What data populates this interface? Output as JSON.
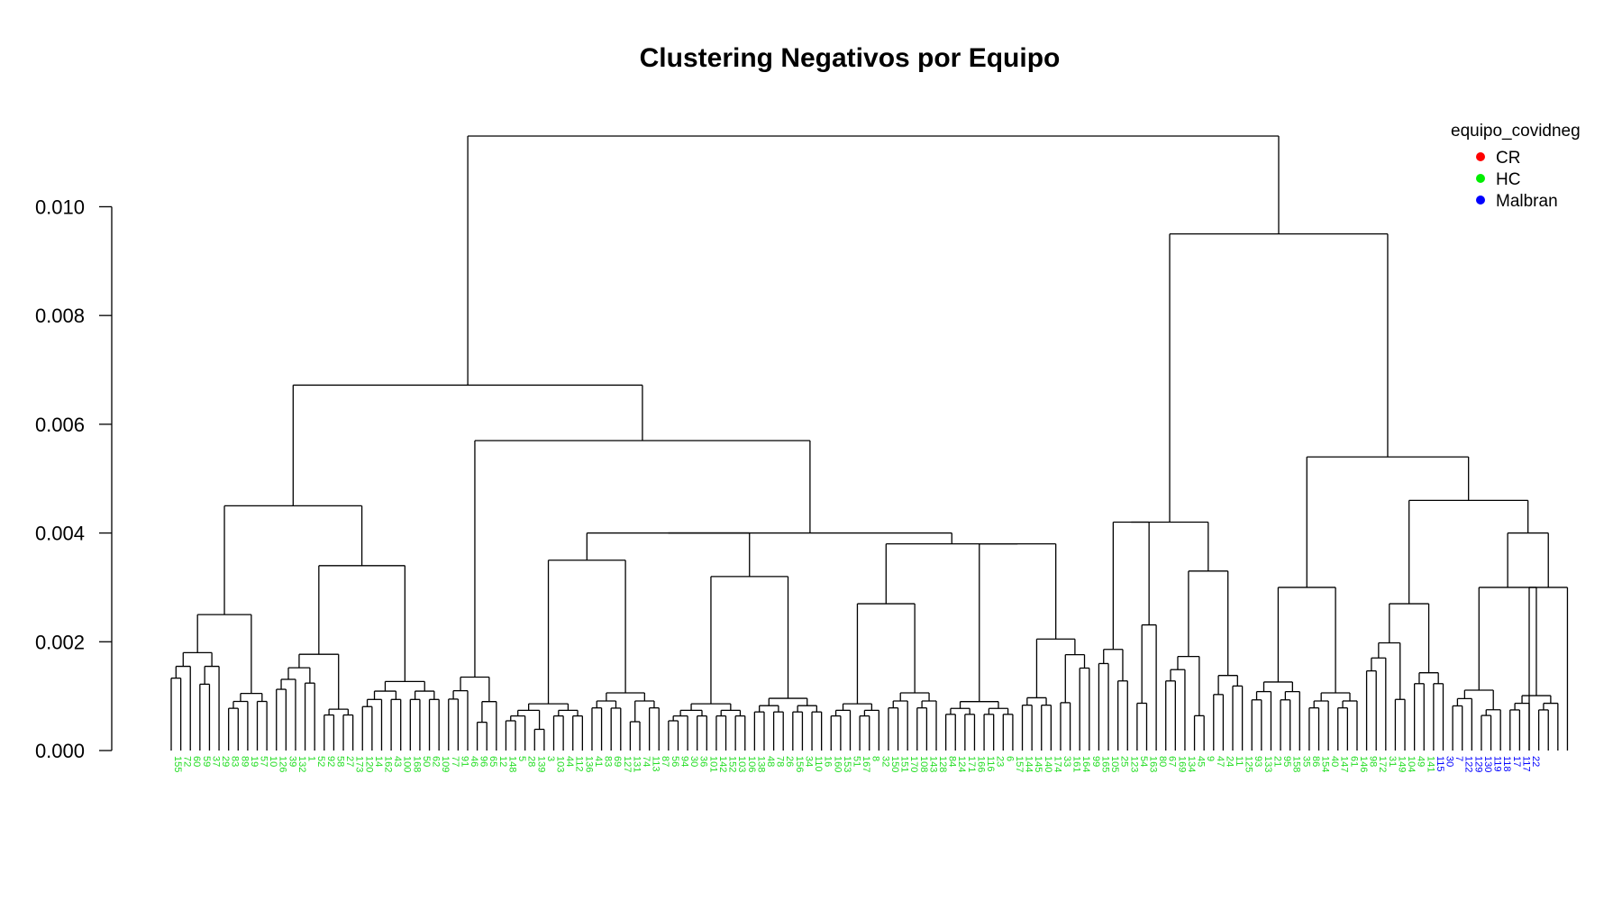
{
  "chart_data": {
    "type": "dendrogram",
    "title": "Clustering Negativos por Equipo",
    "ylim": [
      0,
      0.0113
    ],
    "y_ticks": [
      "0.000",
      "0.002",
      "0.004",
      "0.006",
      "0.008",
      "0.010"
    ],
    "legend": {
      "title": "equipo_covidneg",
      "position": "top-right",
      "entries": [
        {
          "label": "CR",
          "color": "#ff0000"
        },
        {
          "label": "HC",
          "color": "#00ee00"
        },
        {
          "label": "Malbran",
          "color": "#0000ff"
        }
      ]
    },
    "leaf_colors": {
      "HC": "#22dd22",
      "Malbran": "#0000ff"
    },
    "leaves": [
      {
        "label": "155",
        "group": "HC"
      },
      {
        "label": "72",
        "group": "HC"
      },
      {
        "label": "60",
        "group": "HC"
      },
      {
        "label": "59",
        "group": "HC"
      },
      {
        "label": "37",
        "group": "HC"
      },
      {
        "label": "29",
        "group": "HC"
      },
      {
        "label": "83",
        "group": "HC"
      },
      {
        "label": "89",
        "group": "HC"
      },
      {
        "label": "19",
        "group": "HC"
      },
      {
        "label": "57",
        "group": "HC"
      },
      {
        "label": "10",
        "group": "HC"
      },
      {
        "label": "126",
        "group": "HC"
      },
      {
        "label": "39",
        "group": "HC"
      },
      {
        "label": "132",
        "group": "HC"
      },
      {
        "label": "1",
        "group": "HC"
      },
      {
        "label": "52",
        "group": "HC"
      },
      {
        "label": "92",
        "group": "HC"
      },
      {
        "label": "58",
        "group": "HC"
      },
      {
        "label": "27",
        "group": "HC"
      },
      {
        "label": "173",
        "group": "HC"
      },
      {
        "label": "120",
        "group": "HC"
      },
      {
        "label": "14",
        "group": "HC"
      },
      {
        "label": "162",
        "group": "HC"
      },
      {
        "label": "43",
        "group": "HC"
      },
      {
        "label": "100",
        "group": "HC"
      },
      {
        "label": "168",
        "group": "HC"
      },
      {
        "label": "50",
        "group": "HC"
      },
      {
        "label": "62",
        "group": "HC"
      },
      {
        "label": "109",
        "group": "HC"
      },
      {
        "label": "77",
        "group": "HC"
      },
      {
        "label": "91",
        "group": "HC"
      },
      {
        "label": "46",
        "group": "HC"
      },
      {
        "label": "96",
        "group": "HC"
      },
      {
        "label": "65",
        "group": "HC"
      },
      {
        "label": "12",
        "group": "HC"
      },
      {
        "label": "148",
        "group": "HC"
      },
      {
        "label": "5",
        "group": "HC"
      },
      {
        "label": "28",
        "group": "HC"
      },
      {
        "label": "139",
        "group": "HC"
      },
      {
        "label": "3",
        "group": "HC"
      },
      {
        "label": "103",
        "group": "HC"
      },
      {
        "label": "44",
        "group": "HC"
      },
      {
        "label": "112",
        "group": "HC"
      },
      {
        "label": "136",
        "group": "HC"
      },
      {
        "label": "41",
        "group": "HC"
      },
      {
        "label": "83",
        "group": "HC"
      },
      {
        "label": "69",
        "group": "HC"
      },
      {
        "label": "127",
        "group": "HC"
      },
      {
        "label": "131",
        "group": "HC"
      },
      {
        "label": "74",
        "group": "HC"
      },
      {
        "label": "113",
        "group": "HC"
      },
      {
        "label": "87",
        "group": "HC"
      },
      {
        "label": "56",
        "group": "HC"
      },
      {
        "label": "94",
        "group": "HC"
      },
      {
        "label": "30",
        "group": "HC"
      },
      {
        "label": "36",
        "group": "HC"
      },
      {
        "label": "101",
        "group": "HC"
      },
      {
        "label": "142",
        "group": "HC"
      },
      {
        "label": "152",
        "group": "HC"
      },
      {
        "label": "103",
        "group": "HC"
      },
      {
        "label": "106",
        "group": "HC"
      },
      {
        "label": "138",
        "group": "HC"
      },
      {
        "label": "48",
        "group": "HC"
      },
      {
        "label": "78",
        "group": "HC"
      },
      {
        "label": "26",
        "group": "HC"
      },
      {
        "label": "156",
        "group": "HC"
      },
      {
        "label": "34",
        "group": "HC"
      },
      {
        "label": "110",
        "group": "HC"
      },
      {
        "label": "16",
        "group": "HC"
      },
      {
        "label": "160",
        "group": "HC"
      },
      {
        "label": "153",
        "group": "HC"
      },
      {
        "label": "51",
        "group": "HC"
      },
      {
        "label": "167",
        "group": "HC"
      },
      {
        "label": "8",
        "group": "HC"
      },
      {
        "label": "32",
        "group": "HC"
      },
      {
        "label": "150",
        "group": "HC"
      },
      {
        "label": "151",
        "group": "HC"
      },
      {
        "label": "170",
        "group": "HC"
      },
      {
        "label": "108",
        "group": "HC"
      },
      {
        "label": "143",
        "group": "HC"
      },
      {
        "label": "128",
        "group": "HC"
      },
      {
        "label": "84",
        "group": "HC"
      },
      {
        "label": "124",
        "group": "HC"
      },
      {
        "label": "171",
        "group": "HC"
      },
      {
        "label": "166",
        "group": "HC"
      },
      {
        "label": "116",
        "group": "HC"
      },
      {
        "label": "23",
        "group": "HC"
      },
      {
        "label": "6",
        "group": "HC"
      },
      {
        "label": "157",
        "group": "HC"
      },
      {
        "label": "144",
        "group": "HC"
      },
      {
        "label": "145",
        "group": "HC"
      },
      {
        "label": "140",
        "group": "HC"
      },
      {
        "label": "174",
        "group": "HC"
      },
      {
        "label": "33",
        "group": "HC"
      },
      {
        "label": "161",
        "group": "HC"
      },
      {
        "label": "164",
        "group": "HC"
      },
      {
        "label": "99",
        "group": "HC"
      },
      {
        "label": "165",
        "group": "HC"
      },
      {
        "label": "105",
        "group": "HC"
      },
      {
        "label": "25",
        "group": "HC"
      },
      {
        "label": "123",
        "group": "HC"
      },
      {
        "label": "54",
        "group": "HC"
      },
      {
        "label": "163",
        "group": "HC"
      },
      {
        "label": "80",
        "group": "HC"
      },
      {
        "label": "67",
        "group": "HC"
      },
      {
        "label": "169",
        "group": "HC"
      },
      {
        "label": "134",
        "group": "HC"
      },
      {
        "label": "45",
        "group": "HC"
      },
      {
        "label": "9",
        "group": "HC"
      },
      {
        "label": "47",
        "group": "HC"
      },
      {
        "label": "24",
        "group": "HC"
      },
      {
        "label": "11",
        "group": "HC"
      },
      {
        "label": "125",
        "group": "HC"
      },
      {
        "label": "93",
        "group": "HC"
      },
      {
        "label": "133",
        "group": "HC"
      },
      {
        "label": "21",
        "group": "HC"
      },
      {
        "label": "95",
        "group": "HC"
      },
      {
        "label": "158",
        "group": "HC"
      },
      {
        "label": "35",
        "group": "HC"
      },
      {
        "label": "86",
        "group": "HC"
      },
      {
        "label": "154",
        "group": "HC"
      },
      {
        "label": "40",
        "group": "HC"
      },
      {
        "label": "147",
        "group": "HC"
      },
      {
        "label": "61",
        "group": "HC"
      },
      {
        "label": "146",
        "group": "HC"
      },
      {
        "label": "98",
        "group": "HC"
      },
      {
        "label": "172",
        "group": "HC"
      },
      {
        "label": "31",
        "group": "HC"
      },
      {
        "label": "149",
        "group": "HC"
      },
      {
        "label": "104",
        "group": "HC"
      },
      {
        "label": "49",
        "group": "HC"
      },
      {
        "label": "141",
        "group": "HC"
      },
      {
        "label": "115",
        "group": "Malbran"
      },
      {
        "label": "30",
        "group": "Malbran"
      },
      {
        "label": "7",
        "group": "Malbran"
      },
      {
        "label": "122",
        "group": "Malbran"
      },
      {
        "label": "129",
        "group": "Malbran"
      },
      {
        "label": "130",
        "group": "Malbran"
      },
      {
        "label": "119",
        "group": "Malbran"
      },
      {
        "label": "118",
        "group": "Malbran"
      },
      {
        "label": "17",
        "group": "Malbran"
      },
      {
        "label": "117",
        "group": "Malbran"
      },
      {
        "label": "22",
        "group": "Malbran"
      }
    ]
  }
}
